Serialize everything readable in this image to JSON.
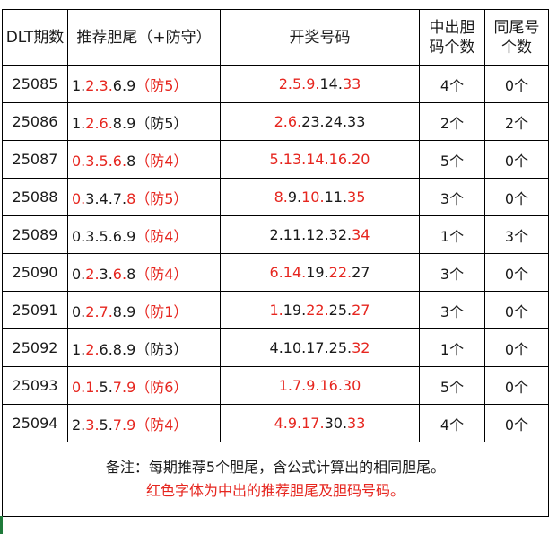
{
  "table": {
    "header": [
      "DLT期数",
      "推荐胆尾（+防守）",
      "开奖号码",
      [
        "中出胆",
        "码个数"
      ],
      [
        "同尾号",
        "个数"
      ]
    ],
    "rows": [
      {
        "period": "25085",
        "recommend": [
          {
            "text": "1.",
            "color": "#1a1a1a"
          },
          {
            "text": "2.3.",
            "color": "#e6261f"
          },
          {
            "text": "6.9",
            "color": "#1a1a1a"
          },
          {
            "text": "（防5）",
            "color": "#e6261f"
          }
        ],
        "draw": [
          {
            "text": "2.5.9.",
            "color": "#e6261f"
          },
          {
            "text": "14.",
            "color": "#1a1a1a"
          },
          {
            "text": "33",
            "color": "#e6261f"
          }
        ],
        "hits": "4个",
        "same_tail": "0个"
      },
      {
        "period": "25086",
        "recommend": [
          {
            "text": "1.",
            "color": "#1a1a1a"
          },
          {
            "text": "2.6.",
            "color": "#e6261f"
          },
          {
            "text": "8.9（防5）",
            "color": "#1a1a1a"
          }
        ],
        "draw": [
          {
            "text": "2.6.",
            "color": "#e6261f"
          },
          {
            "text": "23.24.33",
            "color": "#1a1a1a"
          }
        ],
        "hits": "2个",
        "same_tail": "2个"
      },
      {
        "period": "25087",
        "recommend": [
          {
            "text": "0.3.5.6.",
            "color": "#e6261f"
          },
          {
            "text": "8",
            "color": "#1a1a1a"
          },
          {
            "text": "（防4）",
            "color": "#e6261f"
          }
        ],
        "draw": [
          {
            "text": "5.13.14.16.20",
            "color": "#e6261f"
          }
        ],
        "hits": "5个",
        "same_tail": "0个"
      },
      {
        "period": "25088",
        "recommend": [
          {
            "text": "0.",
            "color": "#e6261f"
          },
          {
            "text": "3.4.7.",
            "color": "#1a1a1a"
          },
          {
            "text": "8（防5）",
            "color": "#e6261f"
          }
        ],
        "draw": [
          {
            "text": "8.",
            "color": "#e6261f"
          },
          {
            "text": "9.",
            "color": "#1a1a1a"
          },
          {
            "text": "10.",
            "color": "#e6261f"
          },
          {
            "text": "11.",
            "color": "#1a1a1a"
          },
          {
            "text": "35",
            "color": "#e6261f"
          }
        ],
        "hits": "3个",
        "same_tail": "0个"
      },
      {
        "period": "25089",
        "recommend": [
          {
            "text": "0.3.5.6.9",
            "color": "#1a1a1a"
          },
          {
            "text": "（防4）",
            "color": "#e6261f"
          }
        ],
        "draw": [
          {
            "text": "2.11.12.32.",
            "color": "#1a1a1a"
          },
          {
            "text": "34",
            "color": "#e6261f"
          }
        ],
        "hits": "1个",
        "same_tail": "3个"
      },
      {
        "period": "25090",
        "recommend": [
          {
            "text": "0.",
            "color": "#1a1a1a"
          },
          {
            "text": "2.",
            "color": "#e6261f"
          },
          {
            "text": "3.",
            "color": "#1a1a1a"
          },
          {
            "text": "6.",
            "color": "#e6261f"
          },
          {
            "text": "8",
            "color": "#1a1a1a"
          },
          {
            "text": "（防4）",
            "color": "#e6261f"
          }
        ],
        "draw": [
          {
            "text": "6.14.",
            "color": "#e6261f"
          },
          {
            "text": "19.",
            "color": "#1a1a1a"
          },
          {
            "text": "22.",
            "color": "#e6261f"
          },
          {
            "text": "27",
            "color": "#1a1a1a"
          }
        ],
        "hits": "3个",
        "same_tail": "0个"
      },
      {
        "period": "25091",
        "recommend": [
          {
            "text": "0.",
            "color": "#1a1a1a"
          },
          {
            "text": "2.7.",
            "color": "#e6261f"
          },
          {
            "text": "8.9",
            "color": "#1a1a1a"
          },
          {
            "text": "（防1）",
            "color": "#e6261f"
          }
        ],
        "draw": [
          {
            "text": "1.",
            "color": "#e6261f"
          },
          {
            "text": "19.",
            "color": "#1a1a1a"
          },
          {
            "text": "22.",
            "color": "#e6261f"
          },
          {
            "text": "25.",
            "color": "#1a1a1a"
          },
          {
            "text": "27",
            "color": "#e6261f"
          }
        ],
        "hits": "3个",
        "same_tail": "0个"
      },
      {
        "period": "25092",
        "recommend": [
          {
            "text": "1.",
            "color": "#1a1a1a"
          },
          {
            "text": "2.",
            "color": "#e6261f"
          },
          {
            "text": "6.8.9（防3）",
            "color": "#1a1a1a"
          }
        ],
        "draw": [
          {
            "text": "4.10.17.25.",
            "color": "#1a1a1a"
          },
          {
            "text": "32",
            "color": "#e6261f"
          }
        ],
        "hits": "1个",
        "same_tail": "0个"
      },
      {
        "period": "25093",
        "recommend": [
          {
            "text": "0.1.",
            "color": "#e6261f"
          },
          {
            "text": "5.",
            "color": "#1a1a1a"
          },
          {
            "text": "7.9（防6）",
            "color": "#e6261f"
          }
        ],
        "draw": [
          {
            "text": "1.7.9.16.30",
            "color": "#e6261f"
          }
        ],
        "hits": "5个",
        "same_tail": "0个"
      },
      {
        "period": "25094",
        "recommend": [
          {
            "text": "2.",
            "color": "#1a1a1a"
          },
          {
            "text": "3.",
            "color": "#e6261f"
          },
          {
            "text": "5.",
            "color": "#1a1a1a"
          },
          {
            "text": "7.9（防4）",
            "color": "#e6261f"
          }
        ],
        "draw": [
          {
            "text": "4.9.17.",
            "color": "#e6261f"
          },
          {
            "text": "30.",
            "color": "#1a1a1a"
          },
          {
            "text": "33",
            "color": "#e6261f"
          }
        ],
        "hits": "4个",
        "same_tail": "0个"
      }
    ],
    "note": [
      {
        "text": "备注：每期推荐5个胆尾，含公式计算出的相同胆尾。",
        "color": "#1a1a1a"
      },
      {
        "text": "红色字体为中出的推荐胆尾及胆码号码。",
        "color": "#e6261f"
      }
    ]
  }
}
